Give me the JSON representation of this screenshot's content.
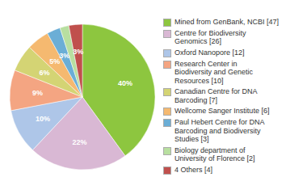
{
  "chart_data": {
    "type": "pie",
    "categories": [
      "Mined from GenBank, NCBI [47]",
      "Centre for Biodiversity\nGenomics [26]",
      "Oxford Nanopore [12]",
      "Research Center in\nBiodiversity and Genetic\nResources [10]",
      "Canadian Centre for DNA\nBarcoding [7]",
      "Wellcome Sanger Institute [6]",
      "Paul Hebert Centre for DNA\nBarcoding and Biodiversity\nStudies [3]",
      "Biology department of\nUniversity of Florence [2]",
      "4 Others [4]"
    ],
    "values": [
      40,
      22,
      10,
      9,
      6,
      5,
      3,
      2,
      3
    ],
    "value_labels": [
      "40%",
      "22%",
      "10%",
      "9%",
      "6%",
      "5%",
      "3%",
      null,
      "3%"
    ],
    "colors": [
      "#8dc63f",
      "#d9b8d4",
      "#aec6e8",
      "#f4a582",
      "#d4d474",
      "#f5b970",
      "#6baed6",
      "#b8dfa0",
      "#c0504d"
    ],
    "data_labels": true,
    "legend": "right"
  }
}
